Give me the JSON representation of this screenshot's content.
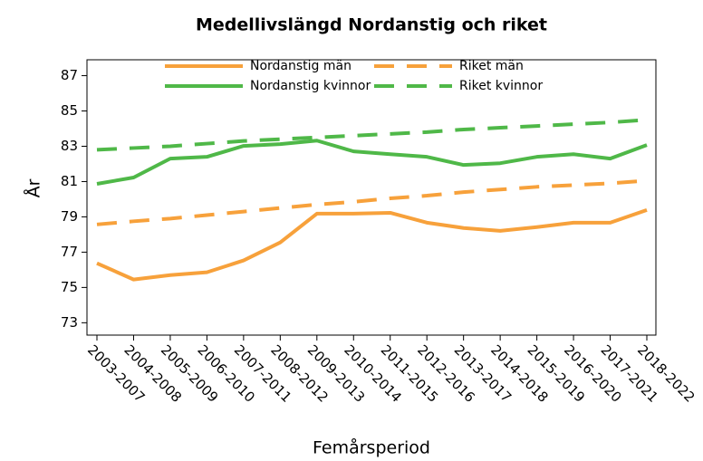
{
  "chart_data": {
    "type": "line",
    "title": "Medellivslängd Nordanstig och riket",
    "xlabel": "Femårsperiod",
    "ylabel": "År",
    "categories": [
      "2003-2007",
      "2004-2008",
      "2005-2009",
      "2006-2010",
      "2007-2011",
      "2008-2012",
      "2009-2013",
      "2010-2014",
      "2011-2015",
      "2012-2016",
      "2013-2017",
      "2014-2018",
      "2015-2019",
      "2016-2020",
      "2017-2021",
      "2018-2022"
    ],
    "series": [
      {
        "name": "Nordanstig män",
        "color": "#f7a13b",
        "dash": false,
        "values": [
          76.37,
          75.45,
          75.7,
          75.86,
          76.53,
          77.55,
          79.18,
          79.18,
          79.23,
          78.67,
          78.37,
          78.21,
          78.42,
          78.67,
          78.67,
          79.39
        ]
      },
      {
        "name": "Riket män",
        "color": "#f7a13b",
        "dash": true,
        "values": [
          78.57,
          78.75,
          78.9,
          79.1,
          79.3,
          79.5,
          79.7,
          79.85,
          80.05,
          80.2,
          80.4,
          80.55,
          80.7,
          80.8,
          80.9,
          81.05
        ]
      },
      {
        "name": "Nordanstig kvinnor",
        "color": "#4fb848",
        "dash": false,
        "values": [
          80.87,
          81.23,
          82.3,
          82.4,
          83.02,
          83.12,
          83.32,
          82.71,
          82.55,
          82.4,
          81.94,
          82.04,
          82.4,
          82.55,
          82.3,
          83.07
        ]
      },
      {
        "name": "Riket kvinnor",
        "color": "#4fb848",
        "dash": true,
        "values": [
          82.8,
          82.9,
          83.0,
          83.15,
          83.3,
          83.4,
          83.5,
          83.6,
          83.7,
          83.8,
          83.95,
          84.05,
          84.15,
          84.25,
          84.35,
          84.5
        ]
      }
    ],
    "ylim": [
      72.3,
      87.9
    ],
    "yticks": [
      73,
      75,
      77,
      79,
      81,
      83,
      85,
      87
    ]
  }
}
